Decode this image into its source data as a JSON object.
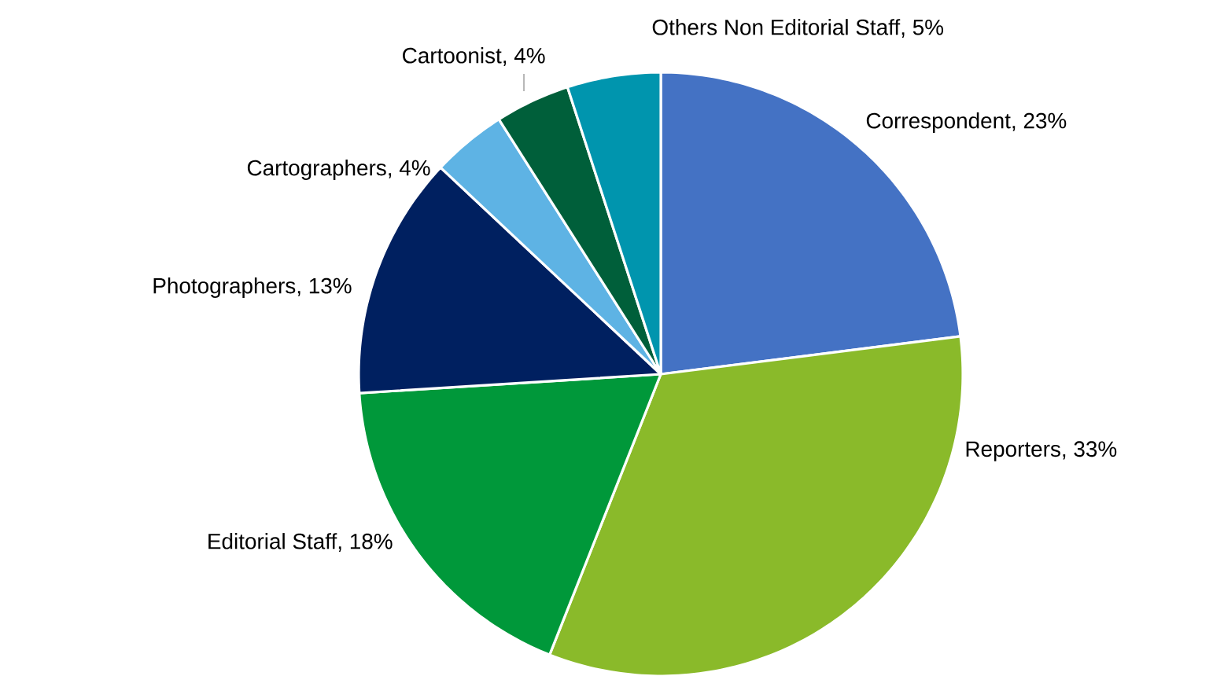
{
  "chart_data": {
    "type": "pie",
    "categories": [
      "Correspondent",
      "Reporters",
      "Editorial Staff",
      "Photographers",
      "Cartographers",
      "Cartoonist",
      "Others Non Editorial Staff"
    ],
    "values": [
      23,
      33,
      18,
      13,
      4,
      4,
      5
    ],
    "value_labels": [
      ", 23%",
      ", 33%",
      ", 18%",
      ", 13%",
      ", 4%",
      ", 4%",
      ", 5%"
    ],
    "colors": [
      "#4472c4",
      "#8aba2a",
      "#00983a",
      "#002060",
      "#5eb3e4",
      "#005f3a",
      "#0095ae"
    ]
  }
}
